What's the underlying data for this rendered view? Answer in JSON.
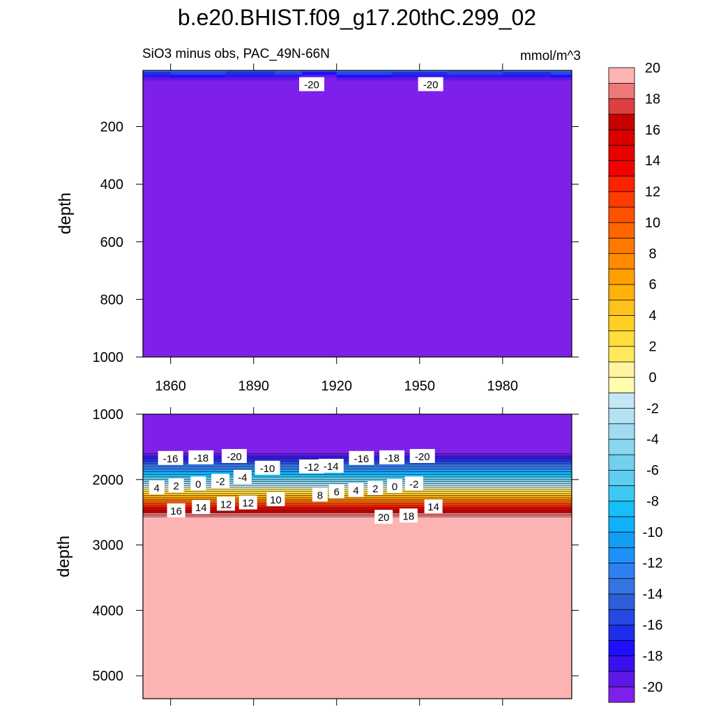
{
  "title": "b.e20.BHIST.f09_g17.20thC.299_02",
  "colors": {
    "contour_levels": [
      -20,
      -19,
      -18,
      -17,
      -16,
      -15,
      -14,
      -13,
      -12,
      -11,
      -10,
      -9,
      -8,
      -7,
      -6,
      -5,
      -4,
      -3,
      -2,
      -1,
      0,
      1,
      2,
      3,
      4,
      5,
      6,
      7,
      8,
      9,
      10,
      11,
      12,
      13,
      14,
      15,
      16,
      17,
      18,
      19,
      20
    ],
    "fill": [
      "#7f20ea",
      "#5c19e6",
      "#3a10f0",
      "#1f0dfd",
      "#1d2ee8",
      "#2548e3",
      "#2f5ed9",
      "#3574e3",
      "#2e80f2",
      "#1f90f7",
      "#149df5",
      "#0eb1fa",
      "#16bff7",
      "#3ec8f2",
      "#5fcdf0",
      "#72d0ef",
      "#8ad7f1",
      "#a0dbf2",
      "#b2e2f4",
      "#c4e7f6",
      "#fffcb0",
      "#fff3a0",
      "#ffe95a",
      "#ffdd3c",
      "#ffd024",
      "#ffc21a",
      "#ffb10c",
      "#ff9f00",
      "#ff8a00",
      "#ff7800",
      "#ff6600",
      "#ff5200",
      "#ff3c00",
      "#ff2200",
      "#f30000",
      "#e60000",
      "#d90000",
      "#c80000",
      "#dd4040",
      "#ee7777",
      "#fcb3b3"
    ]
  },
  "chart_data": [
    {
      "type": "heatmap",
      "panel": "top",
      "subtitle_left": "SiO3 minus obs, PAC_49N-66N",
      "subtitle_right": "mmol/m^3",
      "xlabel": "",
      "ylabel": "depth",
      "xlim": [
        1850,
        2005
      ],
      "ylim": [
        1000,
        5
      ],
      "xticks": [
        1860,
        1890,
        1920,
        1950,
        1980
      ],
      "yticks": [
        200,
        400,
        600,
        800,
        1000
      ],
      "x": [
        1850,
        1870,
        1890,
        1905,
        1910,
        1930,
        1950,
        1970,
        1990,
        2005
      ],
      "depth": [
        5,
        15,
        25,
        35,
        45,
        1000
      ],
      "values": [
        [
          -14,
          -14,
          -15,
          -14,
          -15,
          -14,
          -14,
          -15,
          -14,
          -14
        ],
        [
          -17,
          -16,
          -17,
          -16,
          -18,
          -16,
          -17,
          -16,
          -17,
          -16
        ],
        [
          -19,
          -18,
          -19,
          -19,
          -20,
          -18,
          -19,
          -19,
          -19,
          -18
        ],
        [
          -20,
          -20,
          -20,
          -20,
          -21,
          -20,
          -20,
          -20,
          -20,
          -20
        ],
        [
          -21,
          -21,
          -21,
          -21,
          -21,
          -21,
          -21,
          -21,
          -21,
          -21
        ],
        [
          -21,
          -21,
          -21,
          -21,
          -21,
          -21,
          -21,
          -21,
          -21,
          -21
        ]
      ],
      "contour_labels": [
        {
          "text": "-20",
          "x": 1911,
          "depth": 55
        },
        {
          "text": "-20",
          "x": 1954,
          "depth": 55
        }
      ]
    },
    {
      "type": "heatmap",
      "panel": "bottom",
      "xlabel": "",
      "ylabel": "depth",
      "xlim": [
        1850,
        2005
      ],
      "ylim": [
        5350,
        1000
      ],
      "xticks": [
        1860,
        1890,
        1920,
        1950,
        1980
      ],
      "yticks": [
        1000,
        2000,
        3000,
        4000,
        5000
      ],
      "boundary_depths": [
        1600,
        1640,
        1680,
        1720,
        1760,
        1800,
        1840,
        1880,
        1920,
        1960,
        2000,
        2030,
        2060,
        2090,
        2120,
        2150,
        2180,
        2210,
        2240,
        2270,
        2300,
        2330,
        2360,
        2390,
        2420,
        2450,
        2480,
        2510,
        2540,
        2570
      ],
      "contour_labels": [
        {
          "text": "-16",
          "x": 1860,
          "depth": 1680
        },
        {
          "text": "-18",
          "x": 1871,
          "depth": 1670
        },
        {
          "text": "-20",
          "x": 1883,
          "depth": 1650
        },
        {
          "text": "-10",
          "x": 1895,
          "depth": 1830
        },
        {
          "text": "-12",
          "x": 1911,
          "depth": 1810
        },
        {
          "text": "-14",
          "x": 1918,
          "depth": 1800
        },
        {
          "text": "-16",
          "x": 1929,
          "depth": 1680
        },
        {
          "text": "-18",
          "x": 1940,
          "depth": 1670
        },
        {
          "text": "-20",
          "x": 1951,
          "depth": 1650
        },
        {
          "text": "4",
          "x": 1855,
          "depth": 2130
        },
        {
          "text": "2",
          "x": 1862,
          "depth": 2100
        },
        {
          "text": "0",
          "x": 1870,
          "depth": 2070
        },
        {
          "text": "-2",
          "x": 1878,
          "depth": 2030
        },
        {
          "text": "-4",
          "x": 1886,
          "depth": 1970
        },
        {
          "text": "8",
          "x": 1914,
          "depth": 2240
        },
        {
          "text": "6",
          "x": 1920,
          "depth": 2190
        },
        {
          "text": "4",
          "x": 1927,
          "depth": 2170
        },
        {
          "text": "2",
          "x": 1934,
          "depth": 2140
        },
        {
          "text": "0",
          "x": 1941,
          "depth": 2110
        },
        {
          "text": "-2",
          "x": 1948,
          "depth": 2070
        },
        {
          "text": "16",
          "x": 1862,
          "depth": 2480
        },
        {
          "text": "14",
          "x": 1871,
          "depth": 2430
        },
        {
          "text": "12",
          "x": 1880,
          "depth": 2380
        },
        {
          "text": "12",
          "x": 1888,
          "depth": 2360
        },
        {
          "text": "10",
          "x": 1898,
          "depth": 2310
        },
        {
          "text": "20",
          "x": 1937,
          "depth": 2580
        },
        {
          "text": "18",
          "x": 1946,
          "depth": 2560
        },
        {
          "text": "14",
          "x": 1955,
          "depth": 2420
        }
      ]
    }
  ],
  "colorbar": {
    "labels": [
      "20",
      "18",
      "16",
      "14",
      "12",
      "10",
      "8",
      "6",
      "4",
      "2",
      "0",
      "-2",
      "-4",
      "-6",
      "-8",
      "-10",
      "-12",
      "-14",
      "-16",
      "-18",
      "-20"
    ]
  }
}
